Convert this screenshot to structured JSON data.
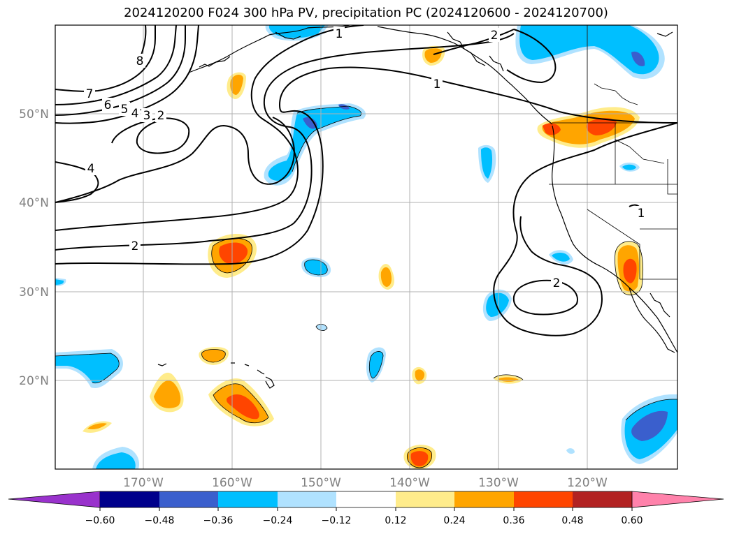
{
  "title": "2024120200 F024 300 hPa PV, precipitation PC (2024120600 - 2024120700)",
  "lat_labels": [
    "50°N",
    "40°N",
    "30°N",
    "20°N"
  ],
  "lon_labels": [
    "170°W",
    "160°W",
    "150°W",
    "140°W",
    "130°W",
    "120°W"
  ],
  "pv_contour_labels": [
    "1",
    "2",
    "1",
    "7",
    "6",
    "5",
    "4",
    "3",
    "2",
    "8",
    "4",
    "2",
    "2",
    "1"
  ],
  "colorbar": {
    "ticks": [
      "−0.60",
      "−0.48",
      "−0.36",
      "−0.24",
      "−0.12",
      "0.12",
      "0.24",
      "0.36",
      "0.48",
      "0.60"
    ],
    "colors": [
      "#9932cc",
      "#00008b",
      "#3a5fcd",
      "#00bfff",
      "#b0e2ff",
      "#ffffff",
      "#ffec8b",
      "#ffa500",
      "#ff4500",
      "#b22222",
      "#ff82ab"
    ]
  },
  "colors": {
    "dark_purple": "#9932cc",
    "navy": "#00008b",
    "royal_blue": "#3a5fcd",
    "deep_sky_blue": "#00bfff",
    "light_blue": "#b0e2ff",
    "light_yellow": "#ffec8b",
    "orange": "#ffa500",
    "orange_red": "#ff4500",
    "firebrick": "#b22222",
    "pink": "#ff82ab"
  }
}
